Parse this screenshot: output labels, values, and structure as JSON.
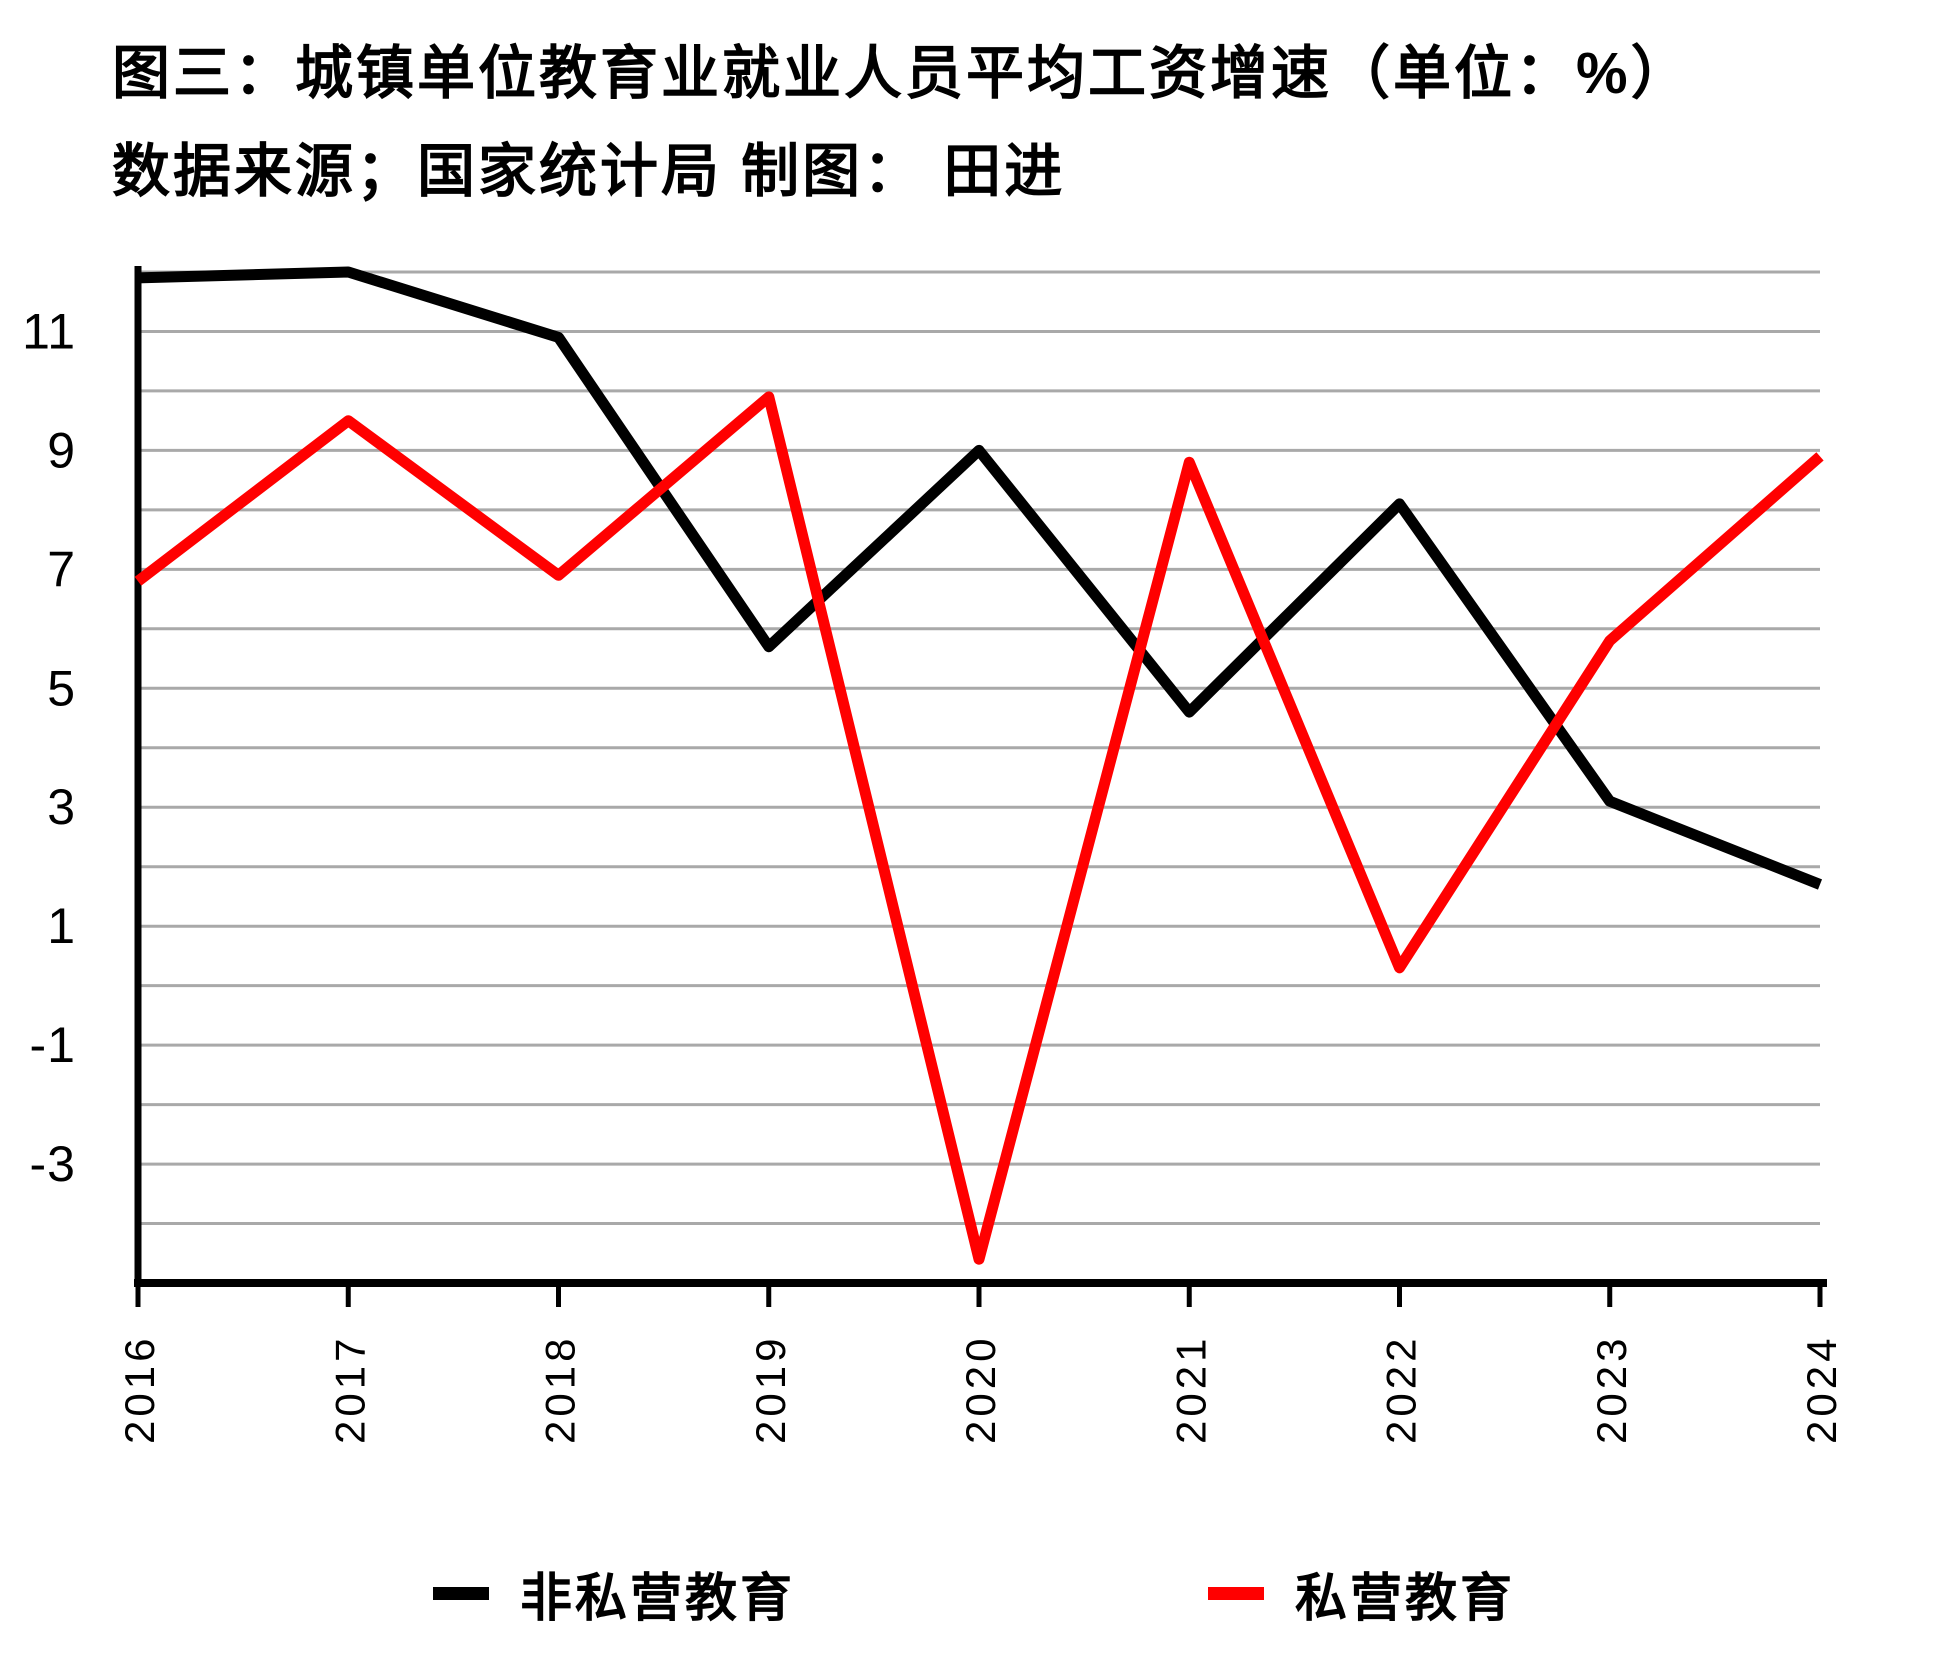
{
  "header": {
    "title": "图三：城镇单位教育业就业人员平均工资增速（单位：%）",
    "subtitle": "数据来源；国家统计局 制图： 田进"
  },
  "chart_data": {
    "type": "line",
    "title": "图三：城镇单位教育业就业人员平均工资增速（单位：%）",
    "source_note": "数据来源；国家统计局 制图： 田进",
    "unit": "%",
    "categories": [
      "2016",
      "2017",
      "2018",
      "2019",
      "2020",
      "2021",
      "2022",
      "2023",
      "2024"
    ],
    "series": [
      {
        "name": "非私营教育",
        "color": "#000000",
        "values": [
          11.9,
          12.0,
          10.9,
          5.7,
          9.0,
          4.6,
          8.1,
          3.1,
          1.7
        ]
      },
      {
        "name": "私营教育",
        "color": "#ff0000",
        "values": [
          6.8,
          9.5,
          6.9,
          9.9,
          -4.6,
          8.8,
          0.3,
          5.8,
          8.9
        ]
      }
    ],
    "ylim": [
      -5,
      12
    ],
    "ytick_labels": [
      "11",
      "9",
      "7",
      "5",
      "3",
      "1",
      "-1",
      "-3"
    ],
    "gridline_step": 1,
    "grid": true,
    "grid_color": "#a9a9a9",
    "axis_color": "#000000",
    "line_width": 11,
    "legend_position": "bottom"
  }
}
